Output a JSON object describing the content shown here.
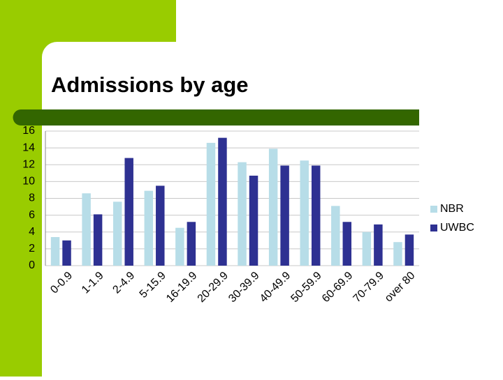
{
  "chart_data": {
    "type": "bar",
    "title": "Admissions by age",
    "categories": [
      "0-0.9",
      "1-1.9",
      "2-4.9",
      "5-15.9",
      "16-19.9",
      "20-29.9",
      "30-39.9",
      "40-49.9",
      "50-59.9",
      "60-69.9",
      "70-79.9",
      "over 80"
    ],
    "series": [
      {
        "name": "NBR",
        "color": "#b7dde8",
        "values": [
          3.4,
          8.6,
          7.6,
          8.9,
          4.5,
          14.6,
          12.3,
          13.9,
          12.5,
          7.1,
          4.0,
          2.8
        ]
      },
      {
        "name": "UWBC",
        "color": "#2e3192",
        "values": [
          3.0,
          6.1,
          12.8,
          9.5,
          5.2,
          15.2,
          10.7,
          11.9,
          11.9,
          5.2,
          4.9,
          3.7
        ]
      }
    ],
    "ylim": [
      0,
      16
    ],
    "yticks": [
      0,
      2,
      4,
      6,
      8,
      10,
      12,
      14,
      16
    ],
    "grid": true,
    "legend": "right"
  }
}
